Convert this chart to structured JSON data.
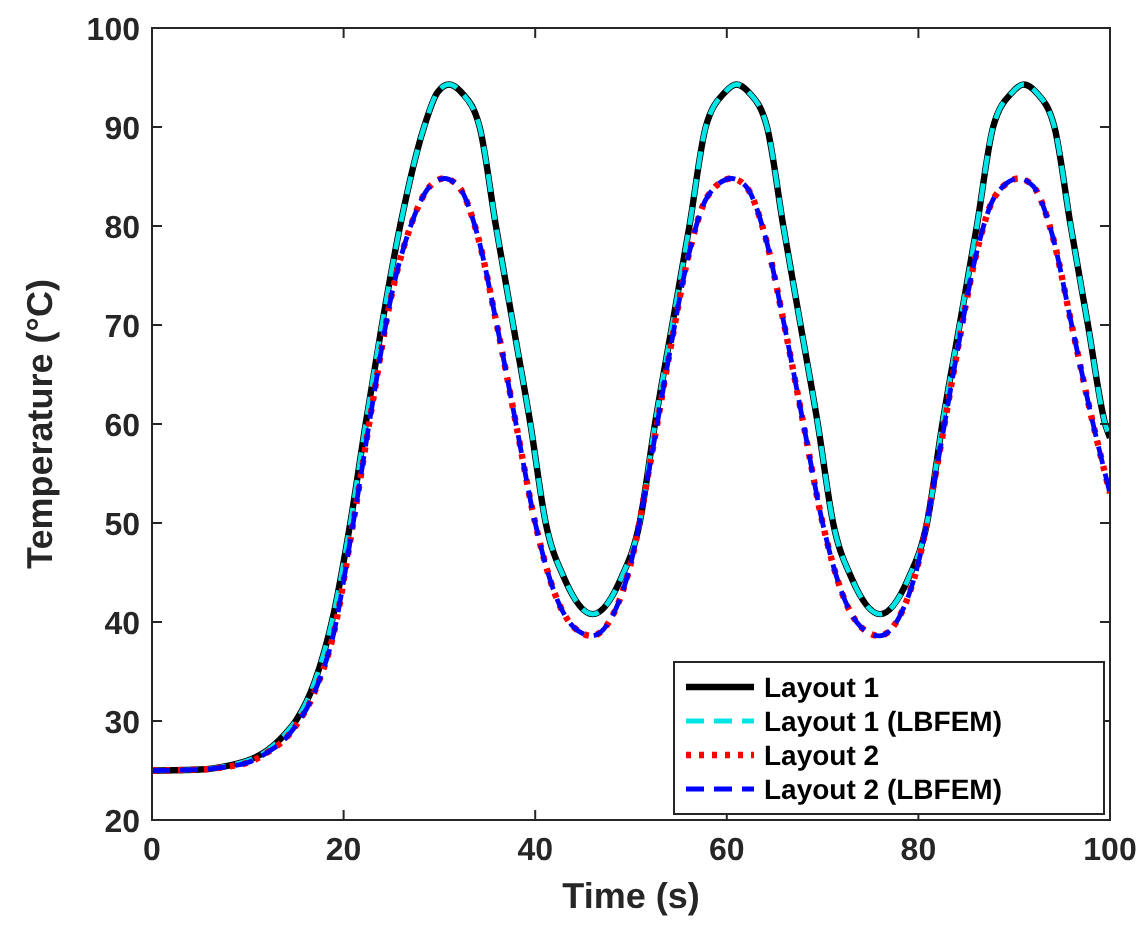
{
  "chart_data": {
    "type": "line",
    "xlabel": "Time (s)",
    "ylabel": "Temperature (°C)",
    "xlim": [
      0,
      100
    ],
    "ylim": [
      20,
      100
    ],
    "xticks": [
      0,
      20,
      40,
      60,
      80,
      100
    ],
    "yticks": [
      20,
      30,
      40,
      50,
      60,
      70,
      80,
      90,
      100
    ],
    "grid": false,
    "legend": "bottom right",
    "marker": "none",
    "x": [
      0,
      5,
      8,
      10,
      12,
      14,
      15,
      17,
      19,
      20.7,
      22.3,
      24,
      25.9,
      28.4,
      29.8,
      31,
      32.3,
      34.2,
      35.9,
      37.7,
      39.5,
      41.1,
      43,
      46,
      49,
      50.9,
      52.5,
      54.3,
      56.1,
      57.8,
      59.8,
      61,
      62.3,
      64.2,
      65.9,
      67.7,
      69.5,
      71.1,
      73,
      76,
      79,
      80.9,
      82.5,
      84.3,
      86.1,
      87.8,
      89.8,
      91,
      92.3,
      94.2,
      95.9,
      97.7,
      99.5,
      100
    ],
    "series": [
      {
        "name": "Layout 1",
        "color": "#000000",
        "line_style": "solid",
        "values": [
          25,
          25.1,
          25.5,
          26,
          27,
          28.8,
          30,
          34,
          41,
          50,
          60,
          70,
          80,
          90,
          93.5,
          94.3,
          93.5,
          90,
          80,
          70,
          60,
          50,
          44.5,
          40.8,
          44.5,
          50,
          60,
          70,
          80,
          90,
          93.5,
          94.3,
          93.5,
          90,
          80,
          70,
          60,
          50,
          44.5,
          40.8,
          44.5,
          50,
          60,
          70,
          80,
          90,
          93.5,
          94.3,
          93.5,
          90,
          80,
          70,
          60,
          58.6
        ]
      },
      {
        "name": "Layout 1 (LBFEM)",
        "color": "#00e5e5",
        "line_style": "dashed",
        "values": [
          25,
          25.1,
          25.5,
          26,
          27,
          28.8,
          30,
          34,
          41,
          50,
          60,
          70,
          80,
          90,
          93.5,
          94.3,
          93.5,
          90,
          80,
          70,
          60,
          50,
          44.5,
          40.8,
          44.5,
          50,
          60,
          70,
          80,
          90,
          93.5,
          94.3,
          93.5,
          90,
          80,
          70,
          60,
          50,
          44.5,
          40.8,
          44.5,
          50,
          60,
          70,
          80,
          90,
          93.5,
          94.3,
          93.5,
          90,
          80,
          70,
          60,
          58.6
        ]
      },
      {
        "name": "Layout 2",
        "color": "#ff0000",
        "line_style": "dotted",
        "x": [
          0,
          5,
          8,
          10,
          12,
          14,
          15,
          17,
          19,
          21,
          23,
          25,
          27,
          29,
          30.5,
          32,
          34,
          36,
          38,
          40,
          42,
          44,
          45.9,
          48,
          50,
          52,
          54,
          56,
          58,
          60.5,
          62,
          64,
          66,
          68,
          70,
          72,
          74,
          75.9,
          78,
          80,
          82,
          84,
          86,
          88,
          90.5,
          92,
          94,
          96,
          98,
          100
        ],
        "values": [
          25,
          25.1,
          25.4,
          25.8,
          26.8,
          28.3,
          29.5,
          33,
          39,
          50,
          62,
          73,
          80,
          84,
          84.8,
          84,
          79,
          70,
          60,
          50,
          43,
          39.5,
          38.6,
          40.5,
          46,
          56,
          67,
          77,
          83,
          84.8,
          84,
          79,
          70,
          60,
          50,
          43,
          39.5,
          38.6,
          40.5,
          46,
          56,
          67,
          77,
          83,
          84.8,
          84,
          79,
          70,
          61,
          53
        ]
      },
      {
        "name": "Layout 2 (LBFEM)",
        "color": "#0000ff",
        "line_style": "dashed",
        "x": [
          0,
          5,
          8,
          10,
          12,
          14,
          15,
          17,
          19,
          21,
          23,
          25,
          27,
          29,
          30.5,
          32,
          34,
          36,
          38,
          40,
          42,
          44,
          45.9,
          48,
          50,
          52,
          54,
          56,
          58,
          60.5,
          62,
          64,
          66,
          68,
          70,
          72,
          74,
          75.9,
          78,
          80,
          82,
          84,
          86,
          88,
          90.5,
          92,
          94,
          96,
          98,
          100
        ],
        "values": [
          25,
          25.1,
          25.4,
          25.8,
          26.8,
          28.3,
          29.5,
          33,
          39,
          50,
          62,
          73,
          80,
          84,
          84.8,
          84,
          79,
          70,
          60,
          50,
          43,
          39.5,
          38.6,
          40.5,
          46,
          56,
          67,
          77,
          83,
          84.8,
          84,
          79,
          70,
          60,
          50,
          43,
          39.5,
          38.6,
          40.5,
          46,
          56,
          67,
          77,
          83,
          84.8,
          84,
          79,
          70,
          61,
          53
        ]
      }
    ]
  }
}
